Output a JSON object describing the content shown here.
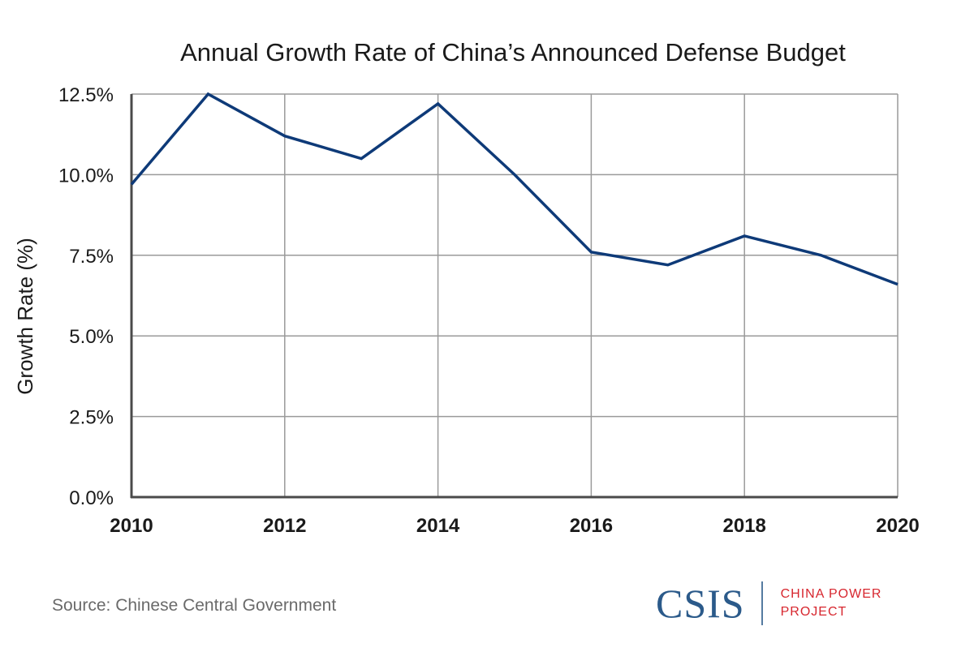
{
  "chart_data": {
    "type": "line",
    "title": "Annual Growth Rate of China’s Announced Defense Budget",
    "xlabel": "",
    "ylabel": "Growth Rate (%)",
    "x": [
      2010,
      2011,
      2012,
      2013,
      2014,
      2015,
      2016,
      2017,
      2018,
      2019,
      2020
    ],
    "series": [
      {
        "name": "Growth Rate",
        "color": "#0e3a78",
        "values": [
          9.7,
          12.5,
          11.2,
          10.5,
          12.2,
          10.0,
          7.6,
          7.2,
          8.1,
          7.5,
          6.6
        ]
      }
    ],
    "xlim": [
      2010,
      2020
    ],
    "ylim": [
      0,
      12.5
    ],
    "xticks": [
      2010,
      2012,
      2014,
      2016,
      2018,
      2020
    ],
    "xtick_labels": [
      "2010",
      "2012",
      "2014",
      "2016",
      "2018",
      "2020"
    ],
    "yticks": [
      0,
      2.5,
      5,
      7.5,
      10,
      12.5
    ],
    "ytick_labels": [
      "0.0%",
      "2.5%",
      "5.0%",
      "7.5%",
      "10.0%",
      "12.5%"
    ],
    "grid": true,
    "legend": "none"
  },
  "footer": {
    "source": "Source: Chinese Central Government",
    "logo_main": "CSIS",
    "logo_sub_line1": "CHINA POWER",
    "logo_sub_line2": "PROJECT"
  }
}
